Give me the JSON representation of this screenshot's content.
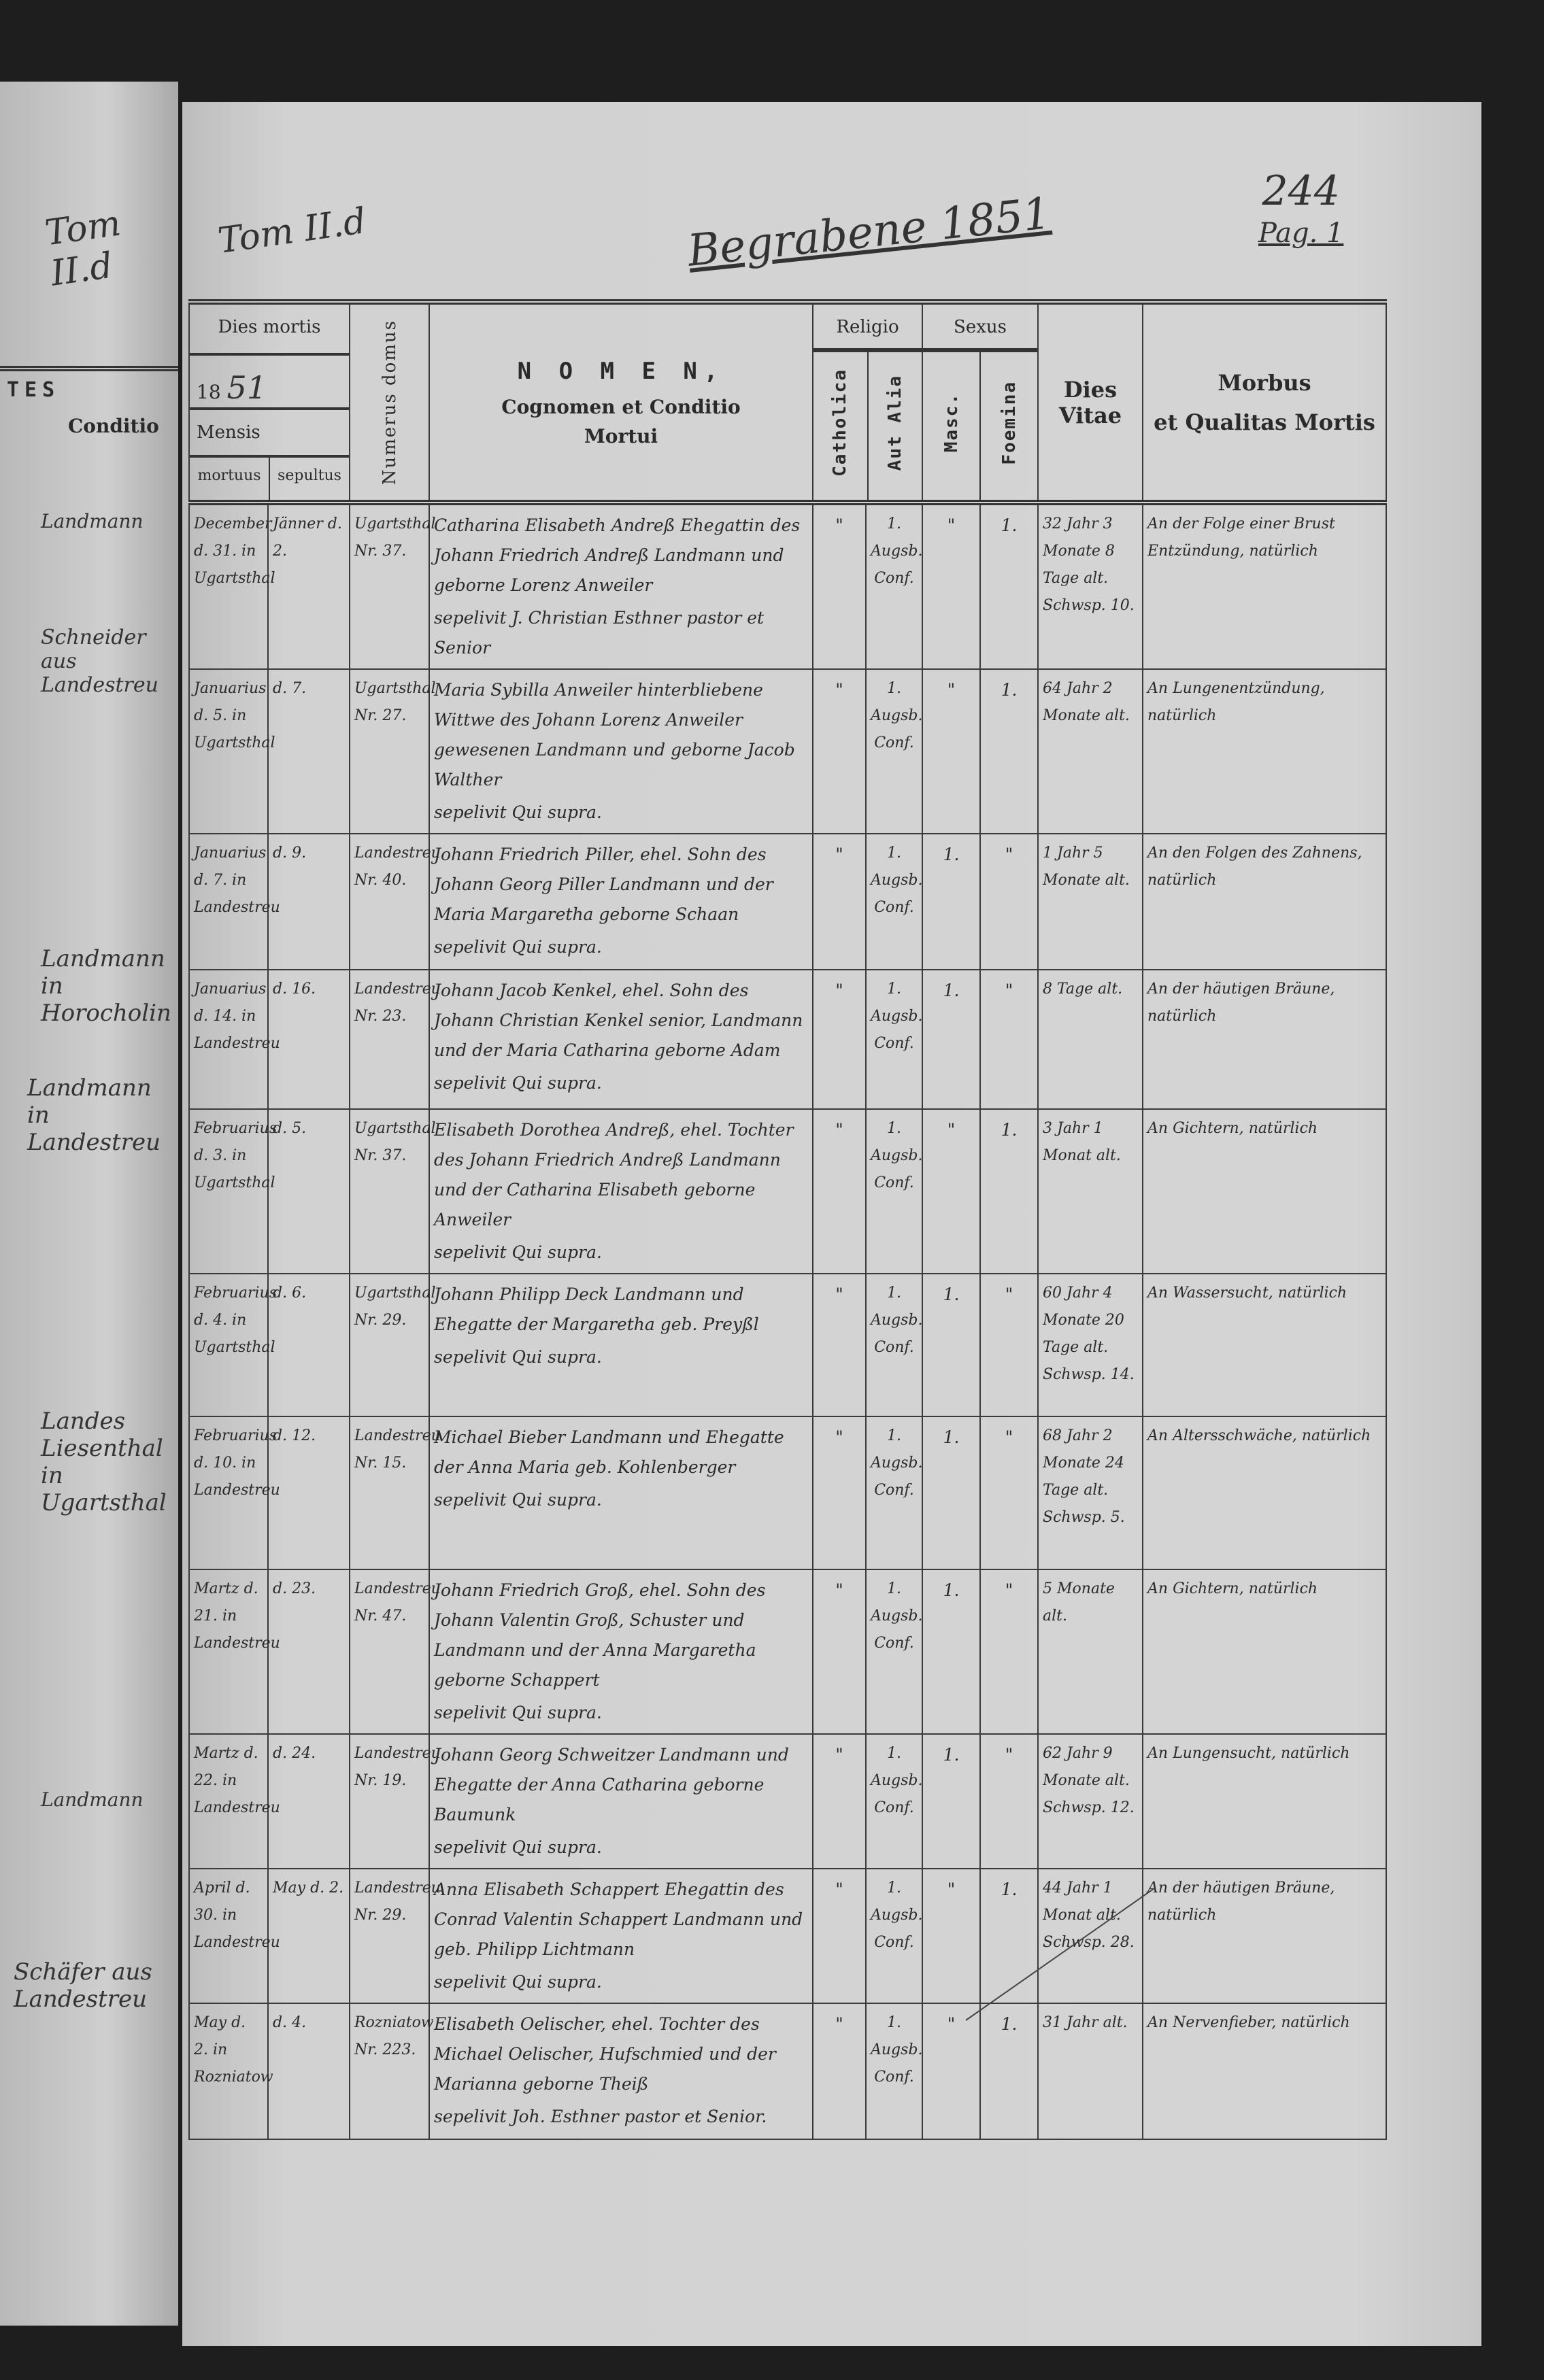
{
  "left_page": {
    "tom": "Tom II.d",
    "heading_fragment": "TES",
    "column": "Conditio",
    "notes": [
      "Landmann",
      "Schneider aus Landestreu",
      "Landmann in Horocholin",
      "Landmann in Landestreu",
      "Landes Liesenthal in Ugartsthal",
      "Landmann",
      "Schäfer aus Landestreu"
    ]
  },
  "header": {
    "tom": "Tom II.d",
    "title": "Begrabene 1851",
    "page_number": "244",
    "page_label": "Pag. 1"
  },
  "columns": {
    "dies_mortis": "Dies mortis",
    "year_prefix": "18",
    "year_hand": "51",
    "mensis": "Mensis",
    "mortuus": "mortuus",
    "sepultus": "sepultus",
    "numerus_domus": "Numerus domus",
    "nomen": "N O M E N,",
    "nomen_sub": "Cognomen et Conditio",
    "nomen_sub2": "Mortui",
    "religio": "Religio",
    "catholica": "Catholica",
    "aut_alia": "Aut Alia",
    "sexus": "Sexus",
    "masc": "Masc.",
    "foemina": "Foemina",
    "dies_vitae": "Dies Vitae",
    "morbus": "Morbus",
    "morbus_sub": "et Qualitas Mortis"
  },
  "entries": [
    {
      "mortuus": "December d. 31. in Ugartsthal",
      "sepultus": "Jänner d. 2.",
      "sepelivit": "sepelivit J. Christian Esthner pastor et Senior",
      "domus": "Ugartsthal Nr. 37.",
      "nomen": "Catharina Elisabeth Andreß Ehegattin des Johann Friedrich Andreß Landmann und geborne Lorenz Anweiler",
      "catholica": "\"",
      "alia": "1. Augsb. Conf.",
      "masc": "\"",
      "foem": "1.",
      "vitae": "32 Jahr 3 Monate 8 Tage alt. Schwsp. 10.",
      "morbus": "An der Folge einer Brust Entzündung, natürlich"
    },
    {
      "mortuus": "Januarius d. 5. in Ugartsthal",
      "sepultus": "d. 7.",
      "sepelivit": "sepelivit Qui supra.",
      "domus": "Ugartsthal Nr. 27.",
      "nomen": "Maria Sybilla Anweiler hinterbliebene Wittwe des Johann Lorenz Anweiler gewesenen Landmann und geborne Jacob Walther",
      "catholica": "\"",
      "alia": "1. Augsb. Conf.",
      "masc": "\"",
      "foem": "1.",
      "vitae": "64 Jahr 2 Monate alt.",
      "morbus": "An Lungenentzündung, natürlich"
    },
    {
      "mortuus": "Januarius d. 7. in Landestreu",
      "sepultus": "d. 9.",
      "sepelivit": "sepelivit Qui supra.",
      "domus": "Landestreu Nr. 40.",
      "nomen": "Johann Friedrich Piller, ehel. Sohn des Johann Georg Piller Landmann und der Maria Margaretha geborne Schaan",
      "catholica": "\"",
      "alia": "1. Augsb. Conf.",
      "masc": "1.",
      "foem": "\"",
      "vitae": "1 Jahr 5 Monate alt.",
      "morbus": "An den Folgen des Zahnens, natürlich"
    },
    {
      "mortuus": "Januarius d. 14. in Landestreu",
      "sepultus": "d. 16.",
      "sepelivit": "sepelivit Qui supra.",
      "domus": "Landestreu Nr. 23.",
      "nomen": "Johann Jacob Kenkel, ehel. Sohn des Johann Christian Kenkel senior, Landmann und der Maria Catharina geborne Adam",
      "catholica": "\"",
      "alia": "1. Augsb. Conf.",
      "masc": "1.",
      "foem": "\"",
      "vitae": "8 Tage alt.",
      "morbus": "An der häutigen Bräune, natürlich"
    },
    {
      "mortuus": "Februarius d. 3. in Ugartsthal",
      "sepultus": "d. 5.",
      "sepelivit": "sepelivit Qui supra.",
      "domus": "Ugartsthal Nr. 37.",
      "nomen": "Elisabeth Dorothea Andreß, ehel. Tochter des Johann Friedrich Andreß Landmann und der Catharina Elisabeth geborne Anweiler",
      "catholica": "\"",
      "alia": "1. Augsb. Conf.",
      "masc": "\"",
      "foem": "1.",
      "vitae": "3 Jahr 1 Monat alt.",
      "morbus": "An Gichtern, natürlich"
    },
    {
      "mortuus": "Februarius d. 4. in Ugartsthal",
      "sepultus": "d. 6.",
      "sepelivit": "sepelivit Qui supra.",
      "domus": "Ugartsthal Nr. 29.",
      "nomen": "Johann Philipp Deck Landmann und Ehegatte der Margaretha geb. Preyßl",
      "catholica": "\"",
      "alia": "1. Augsb. Conf.",
      "masc": "1.",
      "foem": "\"",
      "vitae": "60 Jahr 4 Monate 20 Tage alt. Schwsp. 14.",
      "morbus": "An Wassersucht, natürlich"
    },
    {
      "mortuus": "Februarius d. 10. in Landestreu",
      "sepultus": "d. 12.",
      "sepelivit": "sepelivit Qui supra.",
      "domus": "Landestreu Nr. 15.",
      "nomen": "Michael Bieber Landmann und Ehegatte der Anna Maria geb. Kohlenberger",
      "catholica": "\"",
      "alia": "1. Augsb. Conf.",
      "masc": "1.",
      "foem": "\"",
      "vitae": "68 Jahr 2 Monate 24 Tage alt. Schwsp. 5.",
      "morbus": "An Altersschwäche, natürlich"
    },
    {
      "mortuus": "Martz d. 21. in Landestreu",
      "sepultus": "d. 23.",
      "sepelivit": "sepelivit Qui supra.",
      "domus": "Landestreu Nr. 47.",
      "nomen": "Johann Friedrich Groß, ehel. Sohn des Johann Valentin Groß, Schuster und Landmann und der Anna Margaretha geborne Schappert",
      "catholica": "\"",
      "alia": "1. Augsb. Conf.",
      "masc": "1.",
      "foem": "\"",
      "vitae": "5 Monate alt.",
      "morbus": "An Gichtern, natürlich"
    },
    {
      "mortuus": "Martz d. 22. in Landestreu",
      "sepultus": "d. 24.",
      "sepelivit": "sepelivit Qui supra.",
      "domus": "Landestreu Nr. 19.",
      "nomen": "Johann Georg Schweitzer Landmann und Ehegatte der Anna Catharina geborne Baumunk",
      "catholica": "\"",
      "alia": "1. Augsb. Conf.",
      "masc": "1.",
      "foem": "\"",
      "vitae": "62 Jahr 9 Monate alt. Schwsp. 12.",
      "morbus": "An Lungensucht, natürlich"
    },
    {
      "mortuus": "April d. 30. in Landestreu",
      "sepultus": "May d. 2.",
      "sepelivit": "sepelivit Qui supra.",
      "domus": "Landestreu Nr. 29.",
      "nomen": "Anna Elisabeth Schappert Ehegattin des Conrad Valentin Schappert Landmann und geb. Philipp Lichtmann",
      "catholica": "\"",
      "alia": "1. Augsb. Conf.",
      "masc": "\"",
      "foem": "1.",
      "vitae": "44 Jahr 1 Monat alt. Schwsp. 28.",
      "morbus": "An der häutigen Bräune, natürlich"
    },
    {
      "mortuus": "May d. 2. in Rozniatow",
      "sepultus": "d. 4.",
      "sepelivit": "sepelivit Joh. Esthner pastor et Senior.",
      "domus": "Rozniatow Nr. 223.",
      "nomen": "Elisabeth Oelischer, ehel. Tochter des Michael Oelischer, Hufschmied und der Marianna geborne Theiß",
      "catholica": "\"",
      "alia": "1. Augsb. Conf.",
      "masc": "\"",
      "foem": "1.",
      "vitae": "31 Jahr alt.",
      "morbus": "An Nervenfieber, natürlich"
    }
  ]
}
